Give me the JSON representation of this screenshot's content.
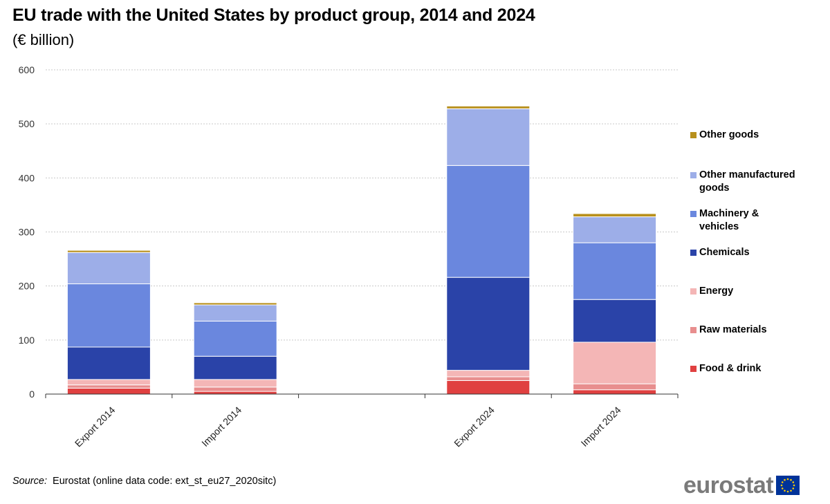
{
  "chart_data": {
    "type": "bar",
    "stacked": true,
    "title": "EU trade with the United States by product group, 2014 and 2024",
    "subtitle": "(€ billion)",
    "xlabel": "",
    "ylabel": "",
    "ylim": [
      0,
      600
    ],
    "yticks": [
      "0",
      "100",
      "200",
      "300",
      "400",
      "500",
      "600"
    ],
    "grid": true,
    "categories": [
      "Export 2014",
      "Import 2014",
      "",
      "Export 2024",
      "Import 2024"
    ],
    "series": [
      {
        "name": "Food & drink",
        "color": "#e04040",
        "values": [
          11,
          5,
          null,
          25,
          8
        ]
      },
      {
        "name": "Raw materials",
        "color": "#e88e8e",
        "values": [
          6,
          8,
          null,
          7,
          11
        ]
      },
      {
        "name": "Energy",
        "color": "#f4b6b6",
        "values": [
          10,
          14,
          null,
          12,
          77
        ]
      },
      {
        "name": "Chemicals",
        "color": "#2a43a8",
        "values": [
          60,
          43,
          null,
          172,
          79
        ]
      },
      {
        "name": "Machinery & vehicles",
        "color": "#6a87de",
        "values": [
          117,
          65,
          null,
          207,
          105
        ]
      },
      {
        "name": "Other manufactured goods",
        "color": "#9daee8",
        "values": [
          58,
          30,
          null,
          105,
          48
        ]
      },
      {
        "name": "Other goods",
        "color": "#b8901c",
        "values": [
          4,
          4,
          null,
          5,
          6
        ]
      }
    ],
    "legend_position": "right",
    "legend_order": [
      "Other goods",
      "Other manufactured goods",
      "Machinery & vehicles",
      "Chemicals",
      "Energy",
      "Raw materials",
      "Food & drink"
    ]
  },
  "legend_labels": {
    "other_goods": "Other goods",
    "other_manufactured": "Other manufactured goods",
    "machinery": "Machinery & vehicles",
    "chemicals": "Chemicals",
    "energy": "Energy",
    "raw_materials": "Raw materials",
    "food_drink": "Food & drink"
  },
  "source": {
    "label": "Source:",
    "text": "Eurostat (online data code: ext_st_eu27_2020sitc)"
  },
  "logo": {
    "text": "eurostat",
    "flag_color": "#003399",
    "star_color": "#ffcc00"
  }
}
